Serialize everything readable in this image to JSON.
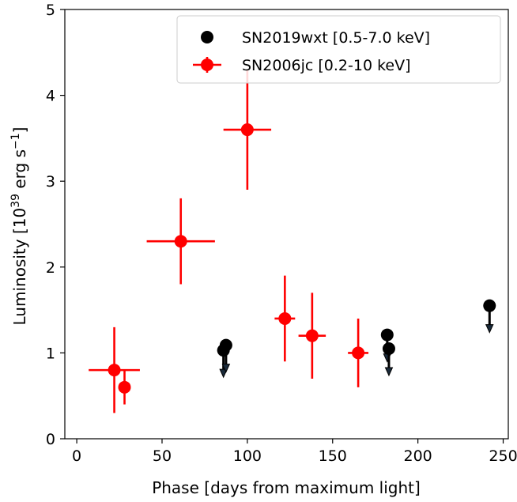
{
  "chart_data": {
    "type": "scatter",
    "title": "",
    "xlabel": "Phase [days from maximum light]",
    "ylabel_main": "Luminosity [10",
    "ylabel_exp1": "39",
    "ylabel_mid": " erg s",
    "ylabel_exp2": "−1",
    "ylabel_end": "]",
    "xlim": [
      -7,
      253
    ],
    "ylim": [
      0,
      5
    ],
    "xticks": [
      0,
      50,
      100,
      150,
      200,
      250
    ],
    "yticks": [
      0,
      1,
      2,
      3,
      4,
      5
    ],
    "legend_position": "top-right",
    "series": [
      {
        "name": "SN2019wxt [0.5-7.0 keV]",
        "color": "#000000",
        "marker": "circle",
        "upper_limits": true,
        "points": [
          {
            "x": 86,
            "y": 1.03
          },
          {
            "x": 87.5,
            "y": 1.09
          },
          {
            "x": 182,
            "y": 1.21
          },
          {
            "x": 183,
            "y": 1.05
          },
          {
            "x": 242,
            "y": 1.55
          }
        ]
      },
      {
        "name": "SN2006jc [0.2-10 keV]",
        "color": "#ff0000",
        "marker": "circle-errorbar",
        "points": [
          {
            "x": 22,
            "y": 0.8,
            "xerr": 15,
            "yerr_low": 0.5,
            "yerr_high": 0.5
          },
          {
            "x": 28,
            "y": 0.6,
            "xerr": 0,
            "yerr_low": 0.2,
            "yerr_high": 0.2
          },
          {
            "x": 61,
            "y": 2.3,
            "xerr": 20,
            "yerr_low": 0.5,
            "yerr_high": 0.5
          },
          {
            "x": 100,
            "y": 3.6,
            "xerr": 14,
            "yerr_low": 0.7,
            "yerr_high": 0.7
          },
          {
            "x": 122,
            "y": 1.4,
            "xerr": 6,
            "yerr_low": 0.5,
            "yerr_high": 0.5
          },
          {
            "x": 138,
            "y": 1.2,
            "xerr": 8,
            "yerr_low": 0.5,
            "yerr_high": 0.5
          },
          {
            "x": 165,
            "y": 1.0,
            "xerr": 6,
            "yerr_low": 0.4,
            "yerr_high": 0.4
          }
        ]
      }
    ]
  }
}
